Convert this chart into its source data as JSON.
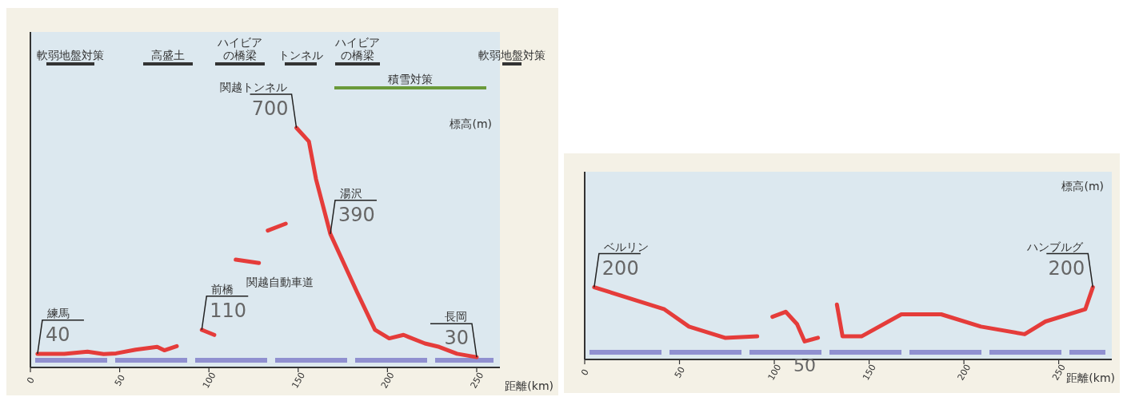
{
  "chart_data": [
    {
      "type": "line",
      "xlabel": "距離(km)",
      "ylabel": "標高(m)",
      "xlim": [
        0,
        263
      ],
      "xticks": [
        0,
        50,
        100,
        150,
        200,
        250
      ],
      "tick_labels": "x",
      "series": [
        {
          "color": "#e53c3a",
          "x": [
            4,
            19,
            32,
            41,
            48,
            59,
            71,
            75,
            82
          ],
          "values": [
            40,
            40,
            46,
            39,
            41,
            52,
            60,
            50,
            62
          ],
          "value_labels": [
            "40",
            null,
            null,
            null,
            null,
            null,
            null,
            null,
            null
          ]
        },
        {
          "color": "#e53c3a",
          "x": [
            96,
            103
          ],
          "values": [
            110,
            95
          ],
          "value_labels": [
            "110",
            null
          ]
        },
        {
          "color": "#e53c3a",
          "x": [
            115,
            128
          ],
          "values": [
            315,
            305
          ]
        },
        {
          "color": "#e53c3a",
          "x": [
            133,
            143
          ],
          "values": [
            400,
            420
          ]
        },
        {
          "color": "#e53c3a",
          "x": [
            149,
            156,
            160,
            165,
            168,
            183,
            193,
            201,
            209,
            221,
            229,
            239,
            250
          ],
          "values": [
            700,
            660,
            550,
            450,
            390,
            220,
            110,
            85,
            95,
            70,
            60,
            40,
            30
          ],
          "value_labels": [
            "700",
            null,
            null,
            null,
            "390",
            null,
            null,
            null,
            null,
            null,
            null,
            null,
            "30"
          ]
        }
      ],
      "annotations": [
        "軟弱地盤対策",
        "高盛土",
        "ハイビアの橋梁",
        "トンネル",
        "ハイビアの橋梁",
        "軟弱地盤対策",
        "積雪対策",
        {
          "text": "練馬",
          "x": 4,
          "y": 40
        },
        {
          "text": "前橋",
          "x": 96,
          "y": 110
        },
        {
          "text": "関越トンネル",
          "x": 149,
          "y": 700
        },
        {
          "text": "湯沢",
          "x": 168,
          "y": 390
        },
        {
          "text": "長岡",
          "x": 250,
          "y": 30
        },
        "関越自動車道"
      ]
    },
    {
      "type": "line",
      "xlabel": "距離(km)",
      "ylabel": "標高(m)",
      "xlim": [
        0,
        278
      ],
      "xticks": [
        0,
        50,
        100,
        150,
        200,
        250
      ],
      "tick_labels": "x",
      "series": [
        {
          "color": "#e53c3a",
          "x": [
            5,
            42,
            55,
            74,
            91
          ],
          "values": [
            200,
            139,
            91,
            60,
            64
          ],
          "value_labels": [
            "200",
            null,
            null,
            null,
            null
          ]
        },
        {
          "color": "#e53c3a",
          "x": [
            99,
            106,
            112,
            116,
            123
          ],
          "values": [
            118,
            132,
            98,
            50,
            60
          ],
          "value_labels": [
            null,
            null,
            null,
            "50",
            null
          ]
        },
        {
          "color": "#e53c3a",
          "x": [
            133,
            136,
            146,
            167,
            188,
            209,
            232,
            243,
            264,
            268
          ],
          "values": [
            152,
            64,
            64,
            125,
            125,
            91,
            70,
            105,
            139,
            200
          ],
          "value_labels": [
            null,
            null,
            null,
            null,
            null,
            null,
            null,
            null,
            null,
            "200"
          ]
        }
      ],
      "annotations": [
        {
          "text": "ベルリン",
          "x": 5,
          "y": 200
        },
        {
          "text": "ハンブルグ",
          "x": 268,
          "y": 200
        }
      ]
    }
  ]
}
